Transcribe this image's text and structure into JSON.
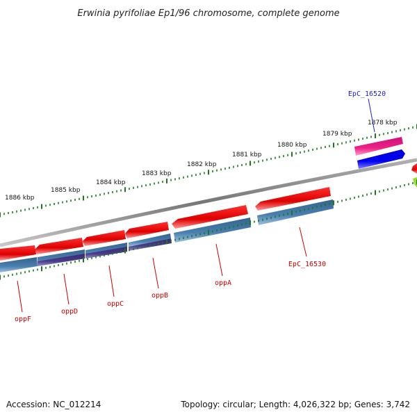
{
  "title": "Erwinia pyrifoliae Ep1/96 chromosome, complete genome",
  "footer": {
    "accession": "Accession: NC_012214",
    "summary": "Topology: circular; Length: 4,026,322 bp; Genes: 3,742"
  },
  "kbp_labels": [
    "1878 kbp",
    "1879 kbp",
    "1880 kbp",
    "1881 kbp",
    "1882 kbp",
    "1883 kbp",
    "1884 kbp",
    "1885 kbp",
    "1886 kbp"
  ],
  "genes": [
    {
      "name": "EpC_16520",
      "strand": "forward",
      "color": "#ee2288",
      "label_color": "#1a1acc"
    },
    {
      "name": "EpC_16530",
      "strand": "reverse",
      "color": "#ee0000",
      "label_color": "#cc0000"
    },
    {
      "name": "oppA",
      "strand": "reverse",
      "color": "#ee0000",
      "label_color": "#cc0000"
    },
    {
      "name": "oppB",
      "strand": "reverse",
      "color": "#ee0000",
      "label_color": "#cc0000"
    },
    {
      "name": "oppC",
      "strand": "reverse",
      "color": "#ee0000",
      "label_color": "#cc0000"
    },
    {
      "name": "oppD",
      "strand": "reverse",
      "color": "#ee0000",
      "label_color": "#cc0000"
    },
    {
      "name": "oppF",
      "strand": "reverse",
      "color": "#ee0000",
      "label_color": "#cc0000"
    }
  ],
  "colors": {
    "backbone": "#888888",
    "tick": "#1a7a1a",
    "cds_red": "#ee0000",
    "cds_blue": "#4a7fb0",
    "cds_purple": "#4a3a8a",
    "forward_blue": "#0000ee",
    "forward_magenta": "#ee2288"
  }
}
